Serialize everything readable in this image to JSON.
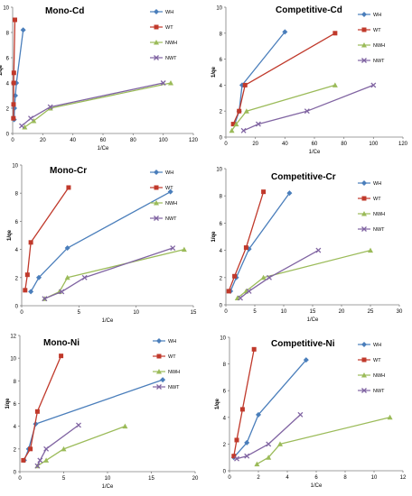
{
  "colors": {
    "WH": "#4a7ebb",
    "WT": "#c0392b",
    "NWH": "#9bbb59",
    "NWT": "#8064a2",
    "axis": "#7f7f7f",
    "text": "#000000"
  },
  "markers": {
    "WH": "diamond",
    "WT": "square",
    "NWH": "triangle",
    "NWT": "cross"
  },
  "chart_data": [
    {
      "type": "line",
      "title": "Mono-Cd",
      "xlabel": "1/Ce",
      "ylabel": "1/qe",
      "xlim": [
        0,
        120
      ],
      "ylim": [
        0,
        10
      ],
      "xticks": [
        0,
        20,
        40,
        60,
        80,
        100,
        120
      ],
      "yticks": [
        0,
        2,
        4,
        6,
        8,
        10
      ],
      "xtick_labels": [
        "0",
        "20",
        "40",
        "60",
        "80",
        "100",
        "120"
      ],
      "ytick_labels": [
        "0",
        "2",
        "4",
        "6",
        "8",
        "10"
      ],
      "legend": "top-right",
      "series": [
        {
          "name": "WH",
          "x": [
            1,
            1.2,
            1.8,
            2.5,
            7
          ],
          "y": [
            1.1,
            2.0,
            3.0,
            4.0,
            8.2
          ]
        },
        {
          "name": "WT",
          "x": [
            0.5,
            0.6,
            0.7,
            0.8,
            1.5
          ],
          "y": [
            1.2,
            2.3,
            4.0,
            4.8,
            9.0
          ]
        },
        {
          "name": "NWH",
          "x": [
            8,
            14,
            25,
            105
          ],
          "y": [
            0.5,
            1.0,
            2.0,
            4.0
          ]
        },
        {
          "name": "NWT",
          "x": [
            6,
            12,
            25,
            100
          ],
          "y": [
            0.6,
            1.2,
            2.1,
            4.0
          ]
        }
      ]
    },
    {
      "type": "line",
      "title": "Competitive-Cd",
      "xlabel": "1/Ce",
      "ylabel": "1/qe",
      "xlim": [
        0,
        120
      ],
      "ylim": [
        0,
        10
      ],
      "xticks": [
        0,
        20,
        40,
        60,
        80,
        100,
        120
      ],
      "yticks": [
        0,
        2,
        4,
        6,
        8,
        10
      ],
      "xtick_labels": [
        "0",
        "20",
        "40",
        "60",
        "80",
        "100",
        "120"
      ],
      "ytick_labels": [
        "0",
        "2",
        "4",
        "6",
        "8",
        "10"
      ],
      "legend": "top-right",
      "series": [
        {
          "name": "WH",
          "x": [
            6,
            9,
            11,
            40
          ],
          "y": [
            1.0,
            2.0,
            4.0,
            8.1
          ]
        },
        {
          "name": "WT",
          "x": [
            5,
            9,
            13,
            74
          ],
          "y": [
            1.0,
            2.0,
            4.0,
            8.0
          ]
        },
        {
          "name": "NWH",
          "x": [
            4,
            7,
            14,
            74
          ],
          "y": [
            0.5,
            1.0,
            2.0,
            4.0
          ]
        },
        {
          "name": "NWT",
          "x": [
            12,
            22,
            55,
            100
          ],
          "y": [
            0.5,
            1.0,
            2.0,
            4.0
          ]
        }
      ]
    },
    {
      "type": "line",
      "title": "Mono-Cr",
      "xlabel": "1/Ce",
      "ylabel": "1/qe",
      "xlim": [
        0,
        15
      ],
      "ylim": [
        0,
        10
      ],
      "xticks": [
        0,
        5,
        10,
        15
      ],
      "yticks": [
        0,
        2,
        4,
        6,
        8,
        10
      ],
      "xtick_labels": [
        "0",
        "5",
        "10",
        "15"
      ],
      "ytick_labels": [
        "0",
        "2",
        "4",
        "6",
        "8",
        "10"
      ],
      "legend": "top-right",
      "series": [
        {
          "name": "WH",
          "x": [
            0.8,
            1.5,
            4,
            13
          ],
          "y": [
            1.0,
            2.0,
            4.1,
            8.1
          ]
        },
        {
          "name": "WT",
          "x": [
            0.3,
            0.5,
            0.8,
            4.1
          ],
          "y": [
            1.1,
            2.2,
            4.5,
            8.4
          ]
        },
        {
          "name": "NWH",
          "x": [
            2,
            3.3,
            4,
            14.2
          ],
          "y": [
            0.5,
            1.0,
            2.0,
            4.0
          ]
        },
        {
          "name": "NWT",
          "x": [
            2,
            3.5,
            5.5,
            13.2
          ],
          "y": [
            0.5,
            1.0,
            2.0,
            4.1
          ]
        }
      ]
    },
    {
      "type": "line",
      "title": "Competitive-Cr",
      "xlabel": "1/Ce",
      "ylabel": "1/qe",
      "xlim": [
        0,
        30
      ],
      "ylim": [
        0,
        10
      ],
      "xticks": [
        0,
        5,
        10,
        15,
        20,
        25,
        30
      ],
      "yticks": [
        0,
        2,
        4,
        6,
        8,
        10
      ],
      "xtick_labels": [
        "0",
        "5",
        "10",
        "15",
        "20",
        "25",
        "30"
      ],
      "ytick_labels": [
        "0",
        "2",
        "4",
        "6",
        "8",
        "10"
      ],
      "legend": "top-right",
      "series": [
        {
          "name": "WH",
          "x": [
            0.8,
            1.8,
            4,
            11
          ],
          "y": [
            1.0,
            2.0,
            4.1,
            8.2
          ]
        },
        {
          "name": "WT",
          "x": [
            0.5,
            1.5,
            3.5,
            6.5
          ],
          "y": [
            1.0,
            2.1,
            4.2,
            8.3
          ]
        },
        {
          "name": "NWH",
          "x": [
            2,
            3.5,
            6.5,
            25
          ],
          "y": [
            0.5,
            1.0,
            2.0,
            4.0
          ]
        },
        {
          "name": "NWT",
          "x": [
            2.5,
            4,
            7.5,
            16
          ],
          "y": [
            0.5,
            1.0,
            2.0,
            4.0
          ]
        }
      ]
    },
    {
      "type": "line",
      "title": "Mono-Ni",
      "xlabel": "1/Ce",
      "ylabel": "1/qe",
      "xlim": [
        0,
        20
      ],
      "ylim": [
        0,
        12
      ],
      "xticks": [
        0,
        5,
        10,
        15,
        20
      ],
      "yticks": [
        0,
        2,
        4,
        6,
        8,
        10,
        12
      ],
      "xtick_labels": [
        "0",
        "5",
        "10",
        "15",
        "20"
      ],
      "ytick_labels": [
        "0",
        "2",
        "4",
        "6",
        "8",
        "10",
        "12"
      ],
      "legend": "top-right",
      "series": [
        {
          "name": "WH",
          "x": [
            0.5,
            1,
            1.8,
            16.3
          ],
          "y": [
            1.0,
            2.0,
            4.2,
            8.1
          ]
        },
        {
          "name": "WT",
          "x": [
            0.4,
            1.2,
            2,
            4.7
          ],
          "y": [
            1.0,
            2.0,
            5.3,
            10.2
          ]
        },
        {
          "name": "NWH",
          "x": [
            2,
            3,
            5,
            12
          ],
          "y": [
            0.5,
            1.0,
            2.0,
            4.0
          ]
        },
        {
          "name": "NWT",
          "x": [
            2,
            2.3,
            3,
            6.7
          ],
          "y": [
            0.5,
            1.0,
            2.0,
            4.1
          ]
        }
      ]
    },
    {
      "type": "line",
      "title": "Competitive-Ni",
      "xlabel": "1/Ce",
      "ylabel": "1/qe",
      "xlim": [
        0,
        12
      ],
      "ylim": [
        0,
        10
      ],
      "xticks": [
        0,
        2,
        4,
        6,
        8,
        10,
        12
      ],
      "yticks": [
        0,
        2,
        4,
        6,
        8,
        10
      ],
      "xtick_labels": [
        "0",
        "2",
        "4",
        "6",
        "8",
        "10",
        "12"
      ],
      "ytick_labels": [
        "0",
        "2",
        "4",
        "6",
        "8",
        "10"
      ],
      "legend": "top-right",
      "series": [
        {
          "name": "WH",
          "x": [
            0.3,
            1.2,
            2,
            5.3
          ],
          "y": [
            1.0,
            2.1,
            4.2,
            8.3
          ]
        },
        {
          "name": "WT",
          "x": [
            0.3,
            0.5,
            0.9,
            1.7
          ],
          "y": [
            1.1,
            2.3,
            4.6,
            9.1
          ]
        },
        {
          "name": "NWH",
          "x": [
            1.9,
            2.7,
            3.5,
            11.1
          ],
          "y": [
            0.5,
            1.0,
            2.0,
            4.0
          ]
        },
        {
          "name": "NWT",
          "x": [
            0.5,
            1.2,
            2.7,
            4.9
          ],
          "y": [
            0.9,
            1.1,
            2.0,
            4.2
          ]
        }
      ]
    }
  ]
}
